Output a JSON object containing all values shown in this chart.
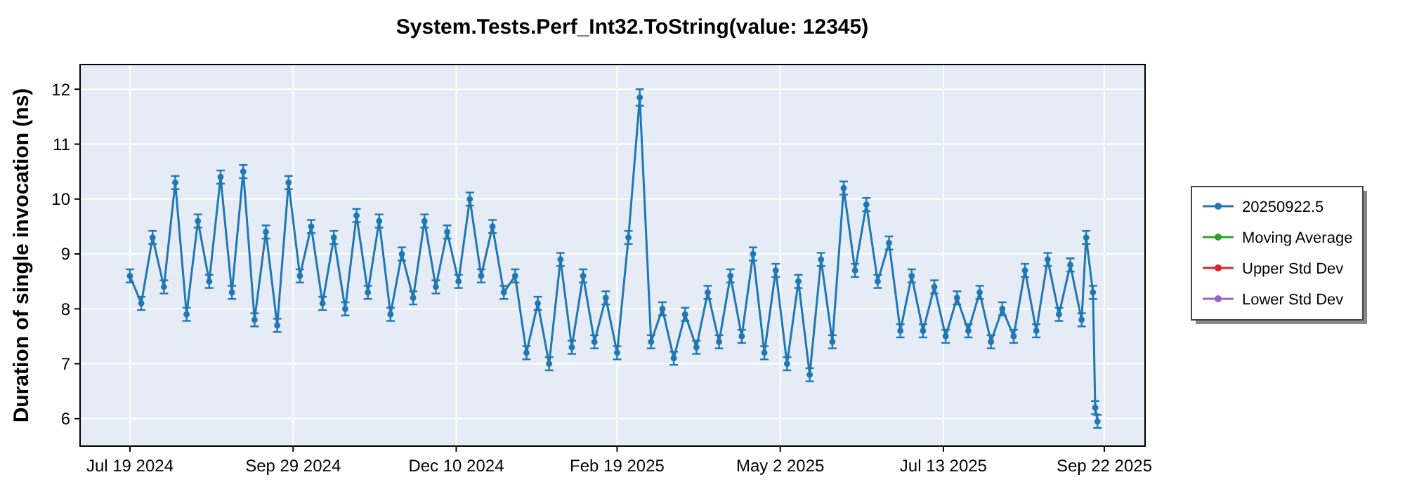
{
  "chart_data": {
    "type": "line",
    "title": "System.Tests.Perf_Int32.ToString(value: 12345)",
    "ylabel": "Duration of single invocation (ns)",
    "x": [
      "2024-07-19",
      "2024-07-24",
      "2024-07-29",
      "2024-08-03",
      "2024-08-08",
      "2024-08-13",
      "2024-08-18",
      "2024-08-23",
      "2024-08-28",
      "2024-09-02",
      "2024-09-07",
      "2024-09-12",
      "2024-09-17",
      "2024-09-22",
      "2024-09-27",
      "2024-10-02",
      "2024-10-07",
      "2024-10-12",
      "2024-10-17",
      "2024-10-22",
      "2024-10-27",
      "2024-11-01",
      "2024-11-06",
      "2024-11-11",
      "2024-11-16",
      "2024-11-21",
      "2024-11-26",
      "2024-12-01",
      "2024-12-06",
      "2024-12-11",
      "2024-12-16",
      "2024-12-21",
      "2024-12-26",
      "2024-12-31",
      "2025-01-05",
      "2025-01-10",
      "2025-01-15",
      "2025-01-20",
      "2025-01-25",
      "2025-01-30",
      "2025-02-04",
      "2025-02-09",
      "2025-02-14",
      "2025-02-19",
      "2025-02-24",
      "2025-03-01",
      "2025-03-06",
      "2025-03-11",
      "2025-03-16",
      "2025-03-21",
      "2025-03-26",
      "2025-03-31",
      "2025-04-05",
      "2025-04-10",
      "2025-04-15",
      "2025-04-20",
      "2025-04-25",
      "2025-04-30",
      "2025-05-05",
      "2025-05-10",
      "2025-05-15",
      "2025-05-20",
      "2025-05-25",
      "2025-05-30",
      "2025-06-04",
      "2025-06-09",
      "2025-06-14",
      "2025-06-19",
      "2025-06-24",
      "2025-06-29",
      "2025-07-04",
      "2025-07-09",
      "2025-07-14",
      "2025-07-19",
      "2025-07-24",
      "2025-07-29",
      "2025-08-03",
      "2025-08-08",
      "2025-08-13",
      "2025-08-18",
      "2025-08-23",
      "2025-08-28",
      "2025-09-02",
      "2025-09-07",
      "2025-09-12",
      "2025-09-14",
      "2025-09-17",
      "2025-09-18",
      "2025-09-19"
    ],
    "series": [
      {
        "name": "20250922.5",
        "color": "#1f77b4",
        "values": [
          8.6,
          8.1,
          9.3,
          8.4,
          10.3,
          7.9,
          9.6,
          8.5,
          10.4,
          8.3,
          10.5,
          7.8,
          9.4,
          7.7,
          10.3,
          8.6,
          9.5,
          8.1,
          9.3,
          8.0,
          9.7,
          8.3,
          9.6,
          7.9,
          9.0,
          8.2,
          9.6,
          8.4,
          9.4,
          8.5,
          10.0,
          8.6,
          9.5,
          8.3,
          8.6,
          7.2,
          8.1,
          7.0,
          8.9,
          7.3,
          8.6,
          7.4,
          8.2,
          7.2,
          9.3,
          11.85,
          7.4,
          8.0,
          7.1,
          7.9,
          7.3,
          8.3,
          7.4,
          8.6,
          7.5,
          9.0,
          7.2,
          8.7,
          7.0,
          8.5,
          6.8,
          8.9,
          7.4,
          10.2,
          8.7,
          9.9,
          8.5,
          9.2,
          7.6,
          8.6,
          7.6,
          8.4,
          7.5,
          8.2,
          7.6,
          8.3,
          7.4,
          8.0,
          7.5,
          8.7,
          7.6,
          8.9,
          7.9,
          8.8,
          7.8,
          9.3,
          8.3,
          6.2,
          5.95
        ],
        "errors": [
          0.12,
          0.12,
          0.12,
          0.12,
          0.12,
          0.12,
          0.12,
          0.12,
          0.12,
          0.12,
          0.12,
          0.12,
          0.12,
          0.12,
          0.12,
          0.12,
          0.12,
          0.12,
          0.12,
          0.12,
          0.12,
          0.12,
          0.12,
          0.12,
          0.12,
          0.12,
          0.12,
          0.12,
          0.12,
          0.12,
          0.12,
          0.12,
          0.12,
          0.12,
          0.12,
          0.12,
          0.12,
          0.12,
          0.12,
          0.12,
          0.12,
          0.12,
          0.12,
          0.12,
          0.12,
          0.15,
          0.12,
          0.12,
          0.12,
          0.12,
          0.12,
          0.12,
          0.12,
          0.12,
          0.12,
          0.12,
          0.12,
          0.12,
          0.12,
          0.12,
          0.12,
          0.12,
          0.12,
          0.12,
          0.12,
          0.12,
          0.12,
          0.12,
          0.12,
          0.12,
          0.12,
          0.12,
          0.12,
          0.12,
          0.12,
          0.12,
          0.12,
          0.12,
          0.12,
          0.12,
          0.12,
          0.12,
          0.12,
          0.12,
          0.12,
          0.12,
          0.12,
          0.12,
          0.12
        ]
      },
      {
        "name": "Moving Average",
        "color": "#2ca02c",
        "values": [
          null,
          null,
          null,
          null,
          null,
          null,
          null,
          null,
          null,
          null,
          null,
          null,
          null,
          null,
          null,
          null,
          null,
          null,
          null,
          null,
          null,
          null,
          null,
          null,
          null,
          null,
          null,
          null,
          null,
          null,
          null,
          null,
          null,
          null,
          null,
          null,
          null,
          null,
          null,
          null,
          null,
          null,
          null,
          null,
          null,
          null,
          null,
          null,
          null,
          null,
          null,
          null,
          null,
          null,
          null,
          null,
          null,
          null,
          null,
          null,
          null,
          null,
          null,
          null,
          null,
          null,
          null,
          null,
          null,
          null,
          null,
          null,
          null,
          null,
          null,
          null,
          null,
          null,
          null,
          null,
          null,
          null,
          null,
          null,
          null,
          null,
          null,
          null,
          null
        ]
      },
      {
        "name": "Upper Std Dev",
        "color": "#d62728",
        "values": [
          null,
          null,
          null,
          null,
          null,
          null,
          null,
          null,
          null,
          null,
          null,
          null,
          null,
          null,
          null,
          null,
          null,
          null,
          null,
          null,
          null,
          null,
          null,
          null,
          null,
          null,
          null,
          null,
          null,
          null,
          null,
          null,
          null,
          null,
          null,
          null,
          null,
          null,
          null,
          null,
          null,
          null,
          null,
          null,
          null,
          null,
          null,
          null,
          null,
          null,
          null,
          null,
          null,
          null,
          null,
          null,
          null,
          null,
          null,
          null,
          null,
          null,
          null,
          null,
          null,
          null,
          null,
          null,
          null,
          null,
          null,
          null,
          null,
          null,
          null,
          null,
          null,
          null,
          null,
          null,
          null,
          null,
          null,
          null,
          null,
          null,
          null,
          null,
          null
        ]
      },
      {
        "name": "Lower Std Dev",
        "color": "#9467bd",
        "values": [
          null,
          null,
          null,
          null,
          null,
          null,
          null,
          null,
          null,
          null,
          null,
          null,
          null,
          null,
          null,
          null,
          null,
          null,
          null,
          null,
          null,
          null,
          null,
          null,
          null,
          null,
          null,
          null,
          null,
          null,
          null,
          null,
          null,
          null,
          null,
          null,
          null,
          null,
          null,
          null,
          null,
          null,
          null,
          null,
          null,
          null,
          null,
          null,
          null,
          null,
          null,
          null,
          null,
          null,
          null,
          null,
          null,
          null,
          null,
          null,
          null,
          null,
          null,
          null,
          null,
          null,
          null,
          null,
          null,
          null,
          null,
          null,
          null,
          null,
          null,
          null,
          null,
          null,
          null,
          null,
          null,
          null,
          null,
          null,
          null,
          null,
          null,
          null,
          null
        ]
      }
    ],
    "xlim": [
      "2024-06-27",
      "2025-10-10"
    ],
    "xticks": [
      {
        "value": "2024-07-19",
        "label": "Jul 19 2024"
      },
      {
        "value": "2024-09-29",
        "label": "Sep 29 2024"
      },
      {
        "value": "2024-12-10",
        "label": "Dec 10 2024"
      },
      {
        "value": "2025-02-19",
        "label": "Feb 19 2025"
      },
      {
        "value": "2025-05-02",
        "label": "May 2 2025"
      },
      {
        "value": "2025-07-13",
        "label": "Jul 13 2025"
      },
      {
        "value": "2025-09-22",
        "label": "Sep 22 2025"
      }
    ],
    "ylim": [
      5.5,
      12.45
    ],
    "yticks": [
      6,
      7,
      8,
      9,
      10,
      11,
      12
    ],
    "grid": true,
    "legend": "right",
    "marker": "circle",
    "line_style": "solid"
  }
}
